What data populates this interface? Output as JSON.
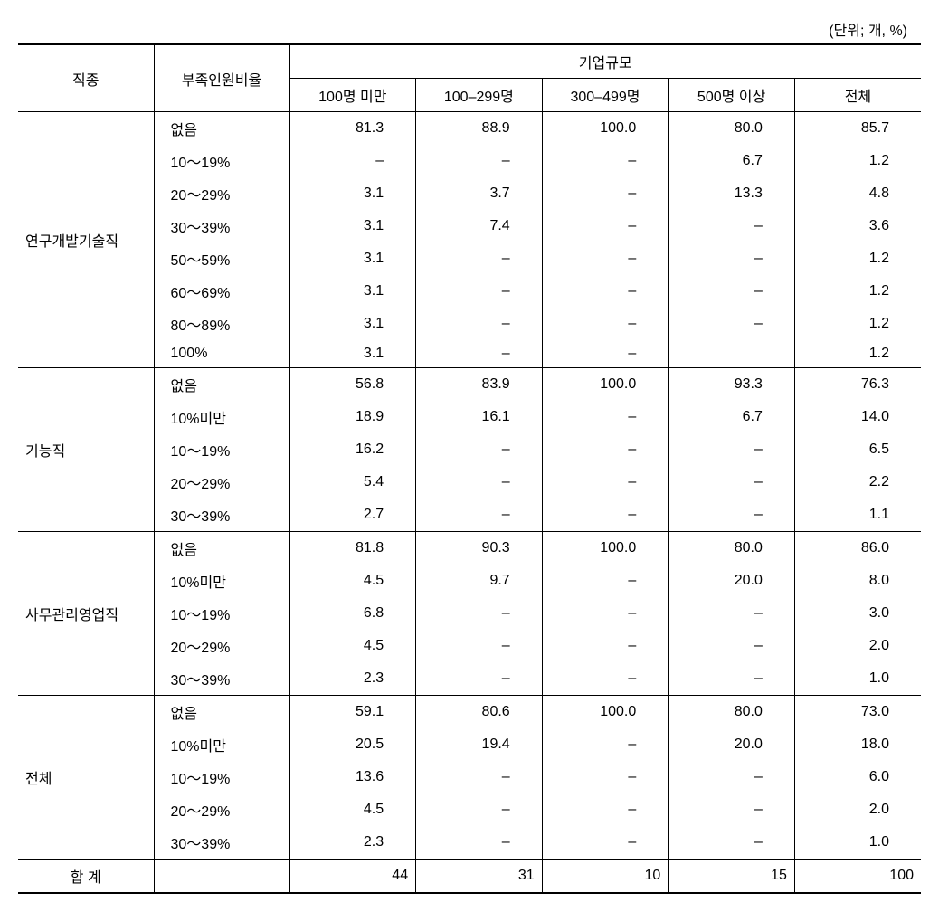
{
  "unit_label": "(단위; 개, %)",
  "headers": {
    "col1": "직종",
    "col2": "부족인원비율",
    "group": "기업규모",
    "sub1": "100명 미만",
    "sub2": "100–299명",
    "sub3": "300–499명",
    "sub4": "500명 이상",
    "sub5": "전체"
  },
  "groups": [
    {
      "label": "연구개발기술직",
      "rows": [
        {
          "ratio": "없음",
          "v": [
            "81.3",
            "88.9",
            "100.0",
            "80.0",
            "85.7"
          ]
        },
        {
          "ratio": "10～19%",
          "v": [
            "–",
            "–",
            "–",
            "6.7",
            "1.2"
          ]
        },
        {
          "ratio": "20～29%",
          "v": [
            "3.1",
            "3.7",
            "–",
            "13.3",
            "4.8"
          ]
        },
        {
          "ratio": "30～39%",
          "v": [
            "3.1",
            "7.4",
            "–",
            "–",
            "3.6"
          ]
        },
        {
          "ratio": "50～59%",
          "v": [
            "3.1",
            "–",
            "–",
            "–",
            "1.2"
          ]
        },
        {
          "ratio": "60～69%",
          "v": [
            "3.1",
            "–",
            "–",
            "–",
            "1.2"
          ]
        },
        {
          "ratio": "80～89%",
          "v": [
            "3.1",
            "–",
            "–",
            "–",
            "1.2"
          ]
        },
        {
          "ratio": "100%",
          "v": [
            "3.1",
            "–",
            "–",
            "",
            "1.2"
          ]
        }
      ]
    },
    {
      "label": "기능직",
      "rows": [
        {
          "ratio": "없음",
          "v": [
            "56.8",
            "83.9",
            "100.0",
            "93.3",
            "76.3"
          ]
        },
        {
          "ratio": "10%미만",
          "v": [
            "18.9",
            "16.1",
            "–",
            "6.7",
            "14.0"
          ]
        },
        {
          "ratio": "10～19%",
          "v": [
            "16.2",
            "–",
            "–",
            "–",
            "6.5"
          ]
        },
        {
          "ratio": "20～29%",
          "v": [
            "5.4",
            "–",
            "–",
            "–",
            "2.2"
          ]
        },
        {
          "ratio": "30～39%",
          "v": [
            "2.7",
            "–",
            "–",
            "–",
            "1.1"
          ]
        }
      ]
    },
    {
      "label": "사무관리영업직",
      "rows": [
        {
          "ratio": "없음",
          "v": [
            "81.8",
            "90.3",
            "100.0",
            "80.0",
            "86.0"
          ]
        },
        {
          "ratio": "10%미만",
          "v": [
            "4.5",
            "9.7",
            "–",
            "20.0",
            "8.0"
          ]
        },
        {
          "ratio": "10～19%",
          "v": [
            "6.8",
            "–",
            "–",
            "–",
            "3.0"
          ]
        },
        {
          "ratio": "20～29%",
          "v": [
            "4.5",
            "–",
            "–",
            "–",
            "2.0"
          ]
        },
        {
          "ratio": "30～39%",
          "v": [
            "2.3",
            "–",
            "–",
            "–",
            "1.0"
          ]
        }
      ]
    },
    {
      "label": "전체",
      "rows": [
        {
          "ratio": "없음",
          "v": [
            "59.1",
            "80.6",
            "100.0",
            "80.0",
            "73.0"
          ]
        },
        {
          "ratio": "10%미만",
          "v": [
            "20.5",
            "19.4",
            "–",
            "20.0",
            "18.0"
          ]
        },
        {
          "ratio": "10～19%",
          "v": [
            "13.6",
            "–",
            "–",
            "–",
            "6.0"
          ]
        },
        {
          "ratio": "20～29%",
          "v": [
            "4.5",
            "–",
            "–",
            "–",
            "2.0"
          ]
        },
        {
          "ratio": "30～39%",
          "v": [
            "2.3",
            "–",
            "–",
            "–",
            "1.0"
          ]
        }
      ]
    }
  ],
  "total": {
    "label": "합  계",
    "v": [
      "44",
      "31",
      "10",
      "15",
      "100"
    ]
  }
}
